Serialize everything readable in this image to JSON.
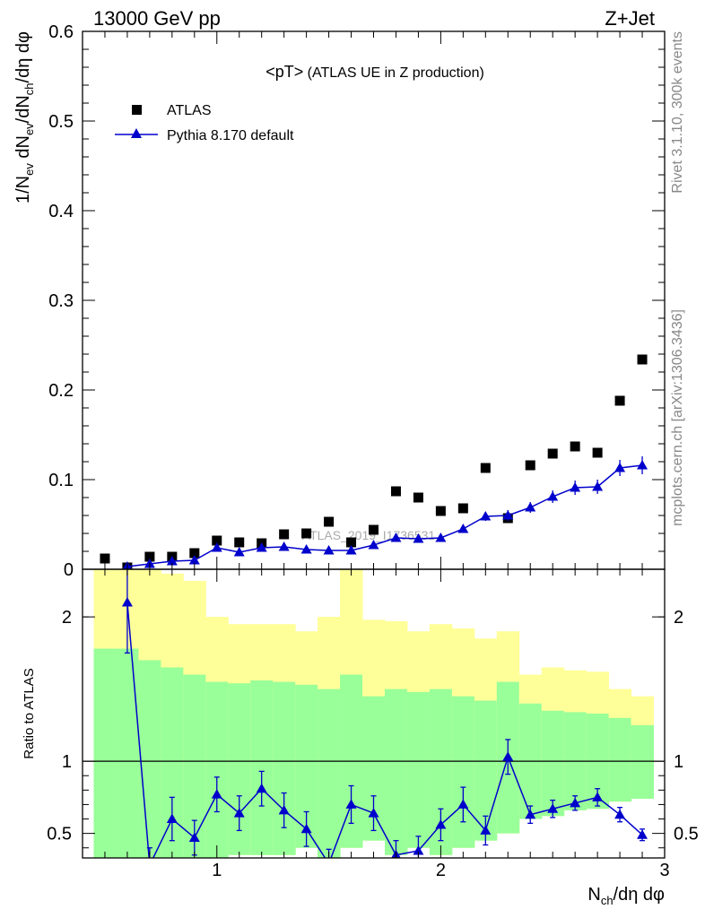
{
  "header": {
    "energy": "13000 GeV pp",
    "process": "Z+Jet",
    "plot_title_main": "<pT>",
    "plot_title_sub": " (ATLAS UE in Z production)",
    "watermark": "ATLAS_2019_I1736531"
  },
  "side_text": {
    "rivet": "Rivet 3.1.10,  300k events",
    "mcplots": "mcplots.cern.ch [arXiv:1306.3436]"
  },
  "colors": {
    "mc": "#0000cc",
    "data": "#000000",
    "band_green": "#99ff99",
    "band_yellow": "#ffff99"
  },
  "chart_data": [
    {
      "type": "scatter",
      "panel": "main",
      "ylabel": "1/N_ev dN_ev/dN_ch/dη dφ",
      "ylim": [
        0,
        0.6
      ],
      "xlim": [
        0.4,
        3.0
      ],
      "yticks": [
        0,
        0.1,
        0.2,
        0.3,
        0.4,
        0.5,
        0.6
      ],
      "ytick_labels": [
        "0",
        "0.1",
        "0.2",
        "0.3",
        "0.4",
        "0.5",
        "0.6"
      ],
      "legend_position": "top-left",
      "series": [
        {
          "name": "ATLAS",
          "style": "square-marker",
          "x": [
            0.5,
            0.6,
            0.7,
            0.8,
            0.9,
            1.0,
            1.1,
            1.2,
            1.3,
            1.4,
            1.5,
            1.6,
            1.7,
            1.8,
            1.9,
            2.0,
            2.1,
            2.2,
            2.3,
            2.4,
            2.5,
            2.6,
            2.7,
            2.8,
            2.9
          ],
          "y": [
            0.012,
            0.002,
            0.014,
            0.014,
            0.018,
            0.032,
            0.03,
            0.029,
            0.039,
            0.04,
            0.053,
            0.03,
            0.044,
            0.087,
            0.08,
            0.065,
            0.068,
            0.113,
            0.057,
            0.116,
            0.129,
            0.137,
            0.13,
            0.188,
            0.234
          ]
        },
        {
          "name": "Pythia 8.170 default",
          "style": "line-triangle",
          "x": [
            0.6,
            0.7,
            0.8,
            0.9,
            1.0,
            1.1,
            1.2,
            1.3,
            1.4,
            1.5,
            1.6,
            1.7,
            1.8,
            1.9,
            2.0,
            2.1,
            2.2,
            2.3,
            2.4,
            2.5,
            2.6,
            2.7,
            2.8,
            2.9
          ],
          "y": [
            0.003,
            0.006,
            0.009,
            0.01,
            0.024,
            0.019,
            0.024,
            0.025,
            0.022,
            0.021,
            0.021,
            0.027,
            0.035,
            0.034,
            0.035,
            0.045,
            0.059,
            0.06,
            0.069,
            0.081,
            0.091,
            0.092,
            0.113,
            0.116
          ],
          "yerr": [
            0.001,
            0.002,
            0.002,
            0.002,
            0.003,
            0.003,
            0.003,
            0.003,
            0.003,
            0.003,
            0.003,
            0.003,
            0.004,
            0.004,
            0.004,
            0.004,
            0.005,
            0.006,
            0.006,
            0.007,
            0.008,
            0.008,
            0.009,
            0.01
          ]
        }
      ]
    },
    {
      "type": "line",
      "panel": "ratio",
      "ylabel": "Ratio to ATLAS",
      "xlabel": "N_ch/dη dφ",
      "ylim": [
        0.33,
        2.33
      ],
      "xlim": [
        0.4,
        3.0
      ],
      "reference_line": 1,
      "xticks": [
        1,
        2,
        3
      ],
      "xtick_labels": [
        "1",
        "2",
        "3"
      ],
      "yticks": [
        0.5,
        1,
        2
      ],
      "ytick_labels": [
        "0.5",
        "1",
        "2"
      ],
      "bands": {
        "bin_edges": [
          0.45,
          0.55,
          0.65,
          0.75,
          0.85,
          0.95,
          1.05,
          1.15,
          1.25,
          1.35,
          1.45,
          1.55,
          1.65,
          1.75,
          1.85,
          1.95,
          2.05,
          2.15,
          2.25,
          2.35,
          2.45,
          2.55,
          2.65,
          2.75,
          2.85,
          2.95
        ],
        "green_lo": [
          0.2,
          0.2,
          0.2,
          0.2,
          0.2,
          0.3,
          0.35,
          0.35,
          0.35,
          0.4,
          0.3,
          0.4,
          0.45,
          0.35,
          0.4,
          0.35,
          0.4,
          0.45,
          0.5,
          0.6,
          0.62,
          0.66,
          0.67,
          0.72,
          0.74
        ],
        "green_hi": [
          1.78,
          1.78,
          1.7,
          1.65,
          1.6,
          1.55,
          1.54,
          1.56,
          1.55,
          1.53,
          1.5,
          1.6,
          1.45,
          1.5,
          1.48,
          1.5,
          1.45,
          1.42,
          1.55,
          1.4,
          1.35,
          1.34,
          1.33,
          1.3,
          1.25
        ],
        "yellow_lo": [
          0.2,
          0.2,
          0.2,
          0.2,
          0.2,
          0.3,
          0.35,
          0.35,
          0.35,
          0.4,
          0.3,
          0.4,
          0.45,
          0.35,
          0.4,
          0.35,
          0.4,
          0.45,
          0.5,
          0.6,
          0.62,
          0.66,
          0.67,
          0.72,
          0.74
        ],
        "yellow_hi": [
          2.4,
          2.4,
          2.4,
          2.3,
          2.25,
          2.0,
          1.95,
          1.95,
          1.95,
          1.9,
          2.0,
          2.45,
          1.98,
          1.97,
          1.9,
          1.95,
          1.92,
          1.85,
          1.9,
          1.6,
          1.65,
          1.63,
          1.62,
          1.5,
          1.45
        ]
      },
      "series": [
        {
          "name": "Pythia 8.170 default",
          "x": [
            0.6,
            0.7,
            0.8,
            0.9,
            1.0,
            1.1,
            1.2,
            1.3,
            1.4,
            1.5,
            1.6,
            1.7,
            1.8,
            1.9,
            2.0,
            2.1,
            2.2,
            2.3,
            2.4,
            2.5,
            2.6,
            2.7,
            2.8,
            2.9
          ],
          "y": [
            2.1,
            0.28,
            0.6,
            0.47,
            0.77,
            0.64,
            0.81,
            0.66,
            0.53,
            0.29,
            0.7,
            0.64,
            0.35,
            0.38,
            0.56,
            0.7,
            0.52,
            1.03,
            0.63,
            0.67,
            0.71,
            0.75,
            0.63,
            0.49
          ],
          "yerr": [
            0.35,
            0.12,
            0.15,
            0.12,
            0.12,
            0.12,
            0.12,
            0.12,
            0.12,
            0.1,
            0.13,
            0.12,
            0.1,
            0.1,
            0.11,
            0.12,
            0.1,
            0.12,
            0.06,
            0.06,
            0.05,
            0.06,
            0.05,
            0.04
          ]
        }
      ]
    }
  ]
}
